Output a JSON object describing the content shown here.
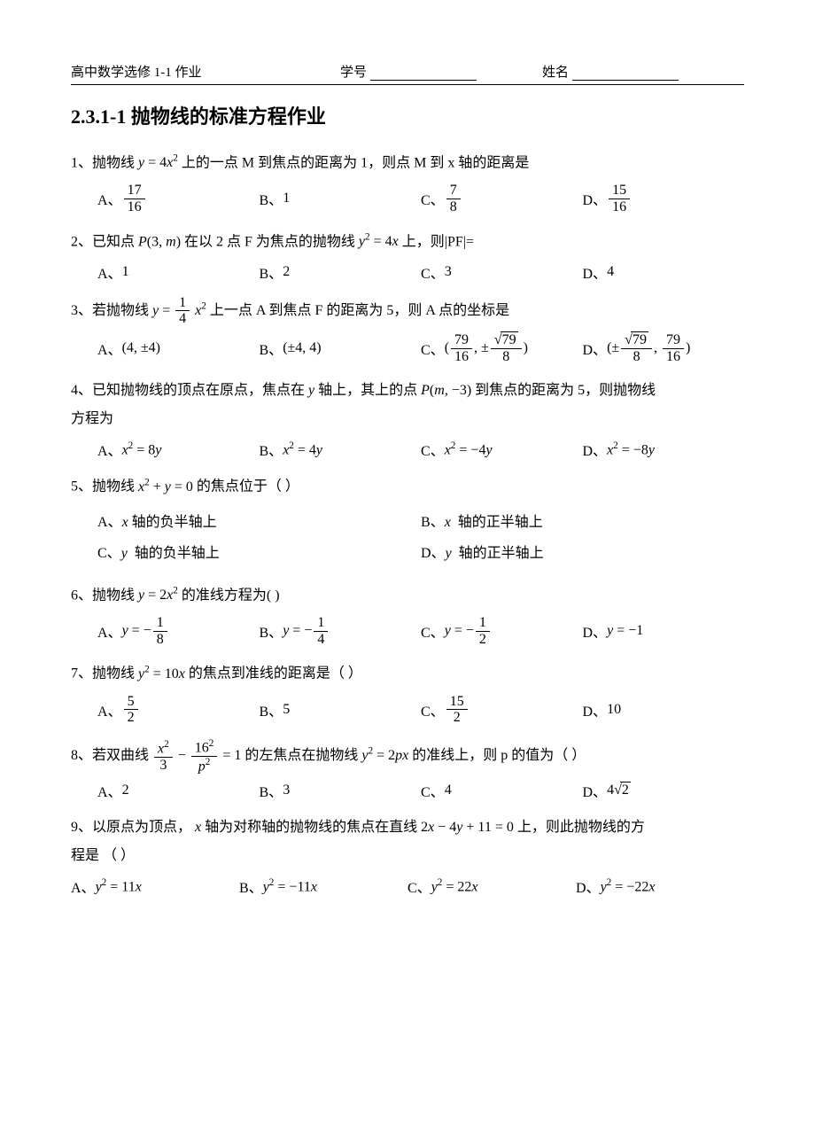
{
  "header": {
    "left": "高中数学选修 1-1 作业",
    "mid_label": "学号",
    "right_label": "姓名"
  },
  "title": "2.3.1-1 抛物线的标准方程作业",
  "q1": {
    "stem_pre": "1、抛物线 ",
    "eq": "y = 4x²",
    "stem_post": " 上的一点 M 到焦点的距离为 1，则点 M 到 x 轴的距离是",
    "A_num": "17",
    "A_den": "16",
    "B": "1",
    "C_num": "7",
    "C_den": "8",
    "D_num": "15",
    "D_den": "16"
  },
  "q2": {
    "stem_pre": "2、已知点 ",
    "P": "P(3, m)",
    "mid": " 在以 2 点 F 为焦点的抛物线 ",
    "eq": "y² = 4x",
    "stem_post": " 上，则|PF|=",
    "A": "1",
    "B": "2",
    "C": "3",
    "D": "4"
  },
  "q3": {
    "stem_pre": "3、若抛物线 ",
    "frac_num": "1",
    "frac_den": "4",
    "stem_post": " 上一点 A 到焦点 F 的距离为 5，则 A 点的坐标是",
    "A": "(4, ±4)",
    "B": "(±4, 4)",
    "C_n1": "79",
    "C_d1": "16",
    "C_n2": "79",
    "C_d2": "8",
    "D_n1": "79",
    "D_d1": "8",
    "D_n2": "79",
    "D_d2": "16"
  },
  "q4": {
    "line1_pre": "4、已知抛物线的顶点在原点，焦点在 ",
    "yaxis": "y",
    "line1_mid": " 轴上，其上的点 ",
    "P": "P(m, −3)",
    "line1_post": " 到焦点的距离为 5，则抛物线",
    "line2": "方程为",
    "A": "x² = 8y",
    "B": "x² = 4y",
    "C": "x² = −4y",
    "D": "x² = −8y"
  },
  "q5": {
    "stem_pre": "5、抛物线 ",
    "eq": "x² + y = 0",
    "stem_post": "  的焦点位于（    ）",
    "A": "x 轴的负半轴上",
    "B": "x  轴的正半轴上",
    "C": "y  轴的负半轴上",
    "D": "y  轴的正半轴上"
  },
  "q6": {
    "stem_pre": "6、抛物线 ",
    "eq": "y = 2x²",
    "stem_post": " 的准线方程为(        )",
    "A_num": "1",
    "A_den": "8",
    "B_num": "1",
    "B_den": "4",
    "C_num": "1",
    "C_den": "2",
    "D": "y = −1"
  },
  "q7": {
    "stem_pre": "7、抛物线 ",
    "eq": "y² = 10x",
    "stem_post": " 的焦点到准线的距离是（    ）",
    "A_num": "5",
    "A_den": "2",
    "B": "5",
    "C_num": "15",
    "C_den": "2",
    "D": "10"
  },
  "q8": {
    "stem_pre": "8、若双曲线 ",
    "n1": "x²",
    "d1": "3",
    "n2": "16²",
    "d2": "p²",
    "mid": " 的左焦点在抛物线 ",
    "eq2": "y² = 2px",
    "stem_post": " 的准线上，则 p 的值为（        ）",
    "A": "2",
    "B": "3",
    "C": "4",
    "D_pre": "4",
    "D_rad": "2"
  },
  "q9": {
    "line1_pre": "9、以原点为顶点， ",
    "xaxis": "x",
    "line1_mid": "  轴为对称轴的抛物线的焦点在直线 ",
    "eq": "2x − 4y + 11 = 0",
    "line1_post": " 上，则此抛物线的方",
    "line2": "程是  （        ）",
    "A": "y² = 11x",
    "B": "y² = −11x",
    "C": "y² = 22x",
    "D": "y² = −22x"
  },
  "labels": {
    "A": "A、",
    "B": "B、",
    "C": "C、",
    "D": "D、"
  }
}
